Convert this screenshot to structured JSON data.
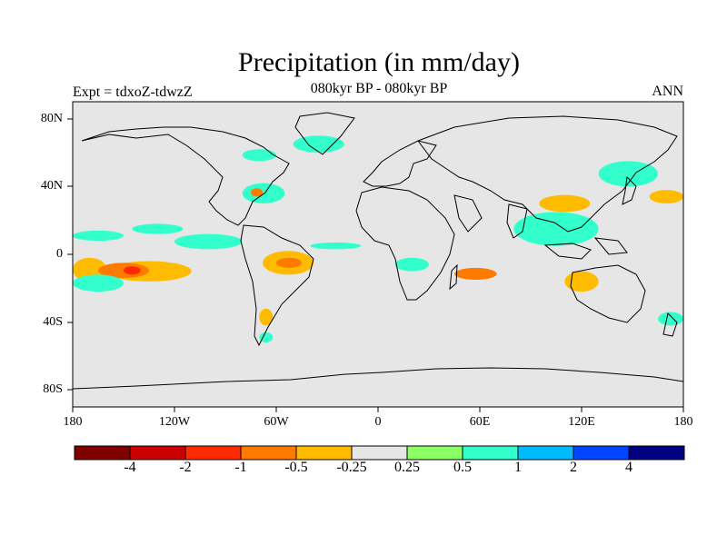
{
  "figure": {
    "title": "Precipitation (in mm/day)",
    "subtitle": "080kyr BP - 080kyr BP",
    "left_label": "Expt = tdxoZ-tdwzZ",
    "right_label": "ANN"
  },
  "map": {
    "projection": "cylindrical equidistant",
    "background_color": "#e6e6e6",
    "x_tick_labels": [
      "180",
      "120W",
      "60W",
      "0",
      "60E",
      "120E",
      "180"
    ],
    "y_tick_labels": [
      "80N",
      "40N",
      "0",
      "40S",
      "80S"
    ]
  },
  "colorbar": {
    "colors": [
      "#800000",
      "#cc0000",
      "#ff2a00",
      "#ff7b00",
      "#ffbb00",
      "#e6e6e6",
      "#8cff66",
      "#33ffcc",
      "#00bbff",
      "#0044ff",
      "#000080"
    ],
    "labels": [
      "-4",
      "-2",
      "-1",
      "-0.5",
      "-0.25",
      "0.25",
      "0.5",
      "1",
      "2",
      "4"
    ]
  },
  "chart_data": {
    "type": "heatmap",
    "title": "Precipitation (in mm/day)",
    "subtitle": "080kyr BP - 080kyr BP",
    "units": "mm/day",
    "levels": [
      -4,
      -2,
      -1,
      -0.5,
      -0.25,
      0.25,
      0.5,
      1,
      2,
      4
    ],
    "x_range": [
      -180,
      180
    ],
    "y_range": [
      -90,
      90
    ],
    "regions": [
      {
        "lon": [
          -180,
          -160
        ],
        "lat": [
          -16,
          -2
        ],
        "value": -0.5
      },
      {
        "lon": [
          -160,
          -110
        ],
        "lat": [
          -16,
          -4
        ],
        "value": -0.5
      },
      {
        "lon": [
          -165,
          -135
        ],
        "lat": [
          -14,
          -5
        ],
        "value": -1
      },
      {
        "lon": [
          -150,
          -140
        ],
        "lat": [
          -12,
          -7
        ],
        "value": -2
      },
      {
        "lon": [
          -180,
          -150
        ],
        "lat": [
          -22,
          -12
        ],
        "value": 0.5
      },
      {
        "lon": [
          -180,
          -150
        ],
        "lat": [
          8,
          14
        ],
        "value": 0.5
      },
      {
        "lon": [
          -145,
          -115
        ],
        "lat": [
          12,
          18
        ],
        "value": 0.5
      },
      {
        "lon": [
          -120,
          -80
        ],
        "lat": [
          3,
          12
        ],
        "value": 0.5
      },
      {
        "lon": [
          -68,
          -38
        ],
        "lat": [
          -12,
          2
        ],
        "value": -0.5
      },
      {
        "lon": [
          -60,
          -45
        ],
        "lat": [
          -8,
          -2
        ],
        "value": -1
      },
      {
        "lon": [
          -40,
          -10
        ],
        "lat": [
          -12,
          -6
        ],
        "value": -0.25
      },
      {
        "lon": [
          -40,
          -10
        ],
        "lat": [
          3,
          7
        ],
        "value": 0.5
      },
      {
        "lon": [
          -80,
          -55
        ],
        "lat": [
          30,
          42
        ],
        "value": 0.5
      },
      {
        "lon": [
          -75,
          -68
        ],
        "lat": [
          34,
          39
        ],
        "value": -1
      },
      {
        "lon": [
          -80,
          -60
        ],
        "lat": [
          55,
          62
        ],
        "value": 0.5
      },
      {
        "lon": [
          -50,
          -20
        ],
        "lat": [
          60,
          70
        ],
        "value": 0.5
      },
      {
        "lon": [
          10,
          30
        ],
        "lat": [
          -10,
          -2
        ],
        "value": 0.5
      },
      {
        "lon": [
          30,
          85
        ],
        "lat": [
          -20,
          -5
        ],
        "value": -0.25
      },
      {
        "lon": [
          45,
          70
        ],
        "lat": [
          -15,
          -8
        ],
        "value": -1
      },
      {
        "lon": [
          80,
          130
        ],
        "lat": [
          5,
          25
        ],
        "value": 0.5
      },
      {
        "lon": [
          95,
          125
        ],
        "lat": [
          25,
          35
        ],
        "value": -0.5
      },
      {
        "lon": [
          110,
          130
        ],
        "lat": [
          -22,
          -10
        ],
        "value": -0.5
      },
      {
        "lon": [
          130,
          170
        ],
        "lat": [
          -18,
          -10
        ],
        "value": -0.25
      },
      {
        "lon": [
          130,
          165
        ],
        "lat": [
          40,
          55
        ],
        "value": 0.5
      },
      {
        "lon": [
          160,
          180
        ],
        "lat": [
          30,
          38
        ],
        "value": -0.5
      },
      {
        "lon": [
          -70,
          -62
        ],
        "lat": [
          -42,
          -32
        ],
        "value": -0.5
      },
      {
        "lon": [
          -70,
          -62
        ],
        "lat": [
          -52,
          -46
        ],
        "value": 0.5
      },
      {
        "lon": [
          165,
          180
        ],
        "lat": [
          -42,
          -34
        ],
        "value": 0.5
      }
    ]
  }
}
